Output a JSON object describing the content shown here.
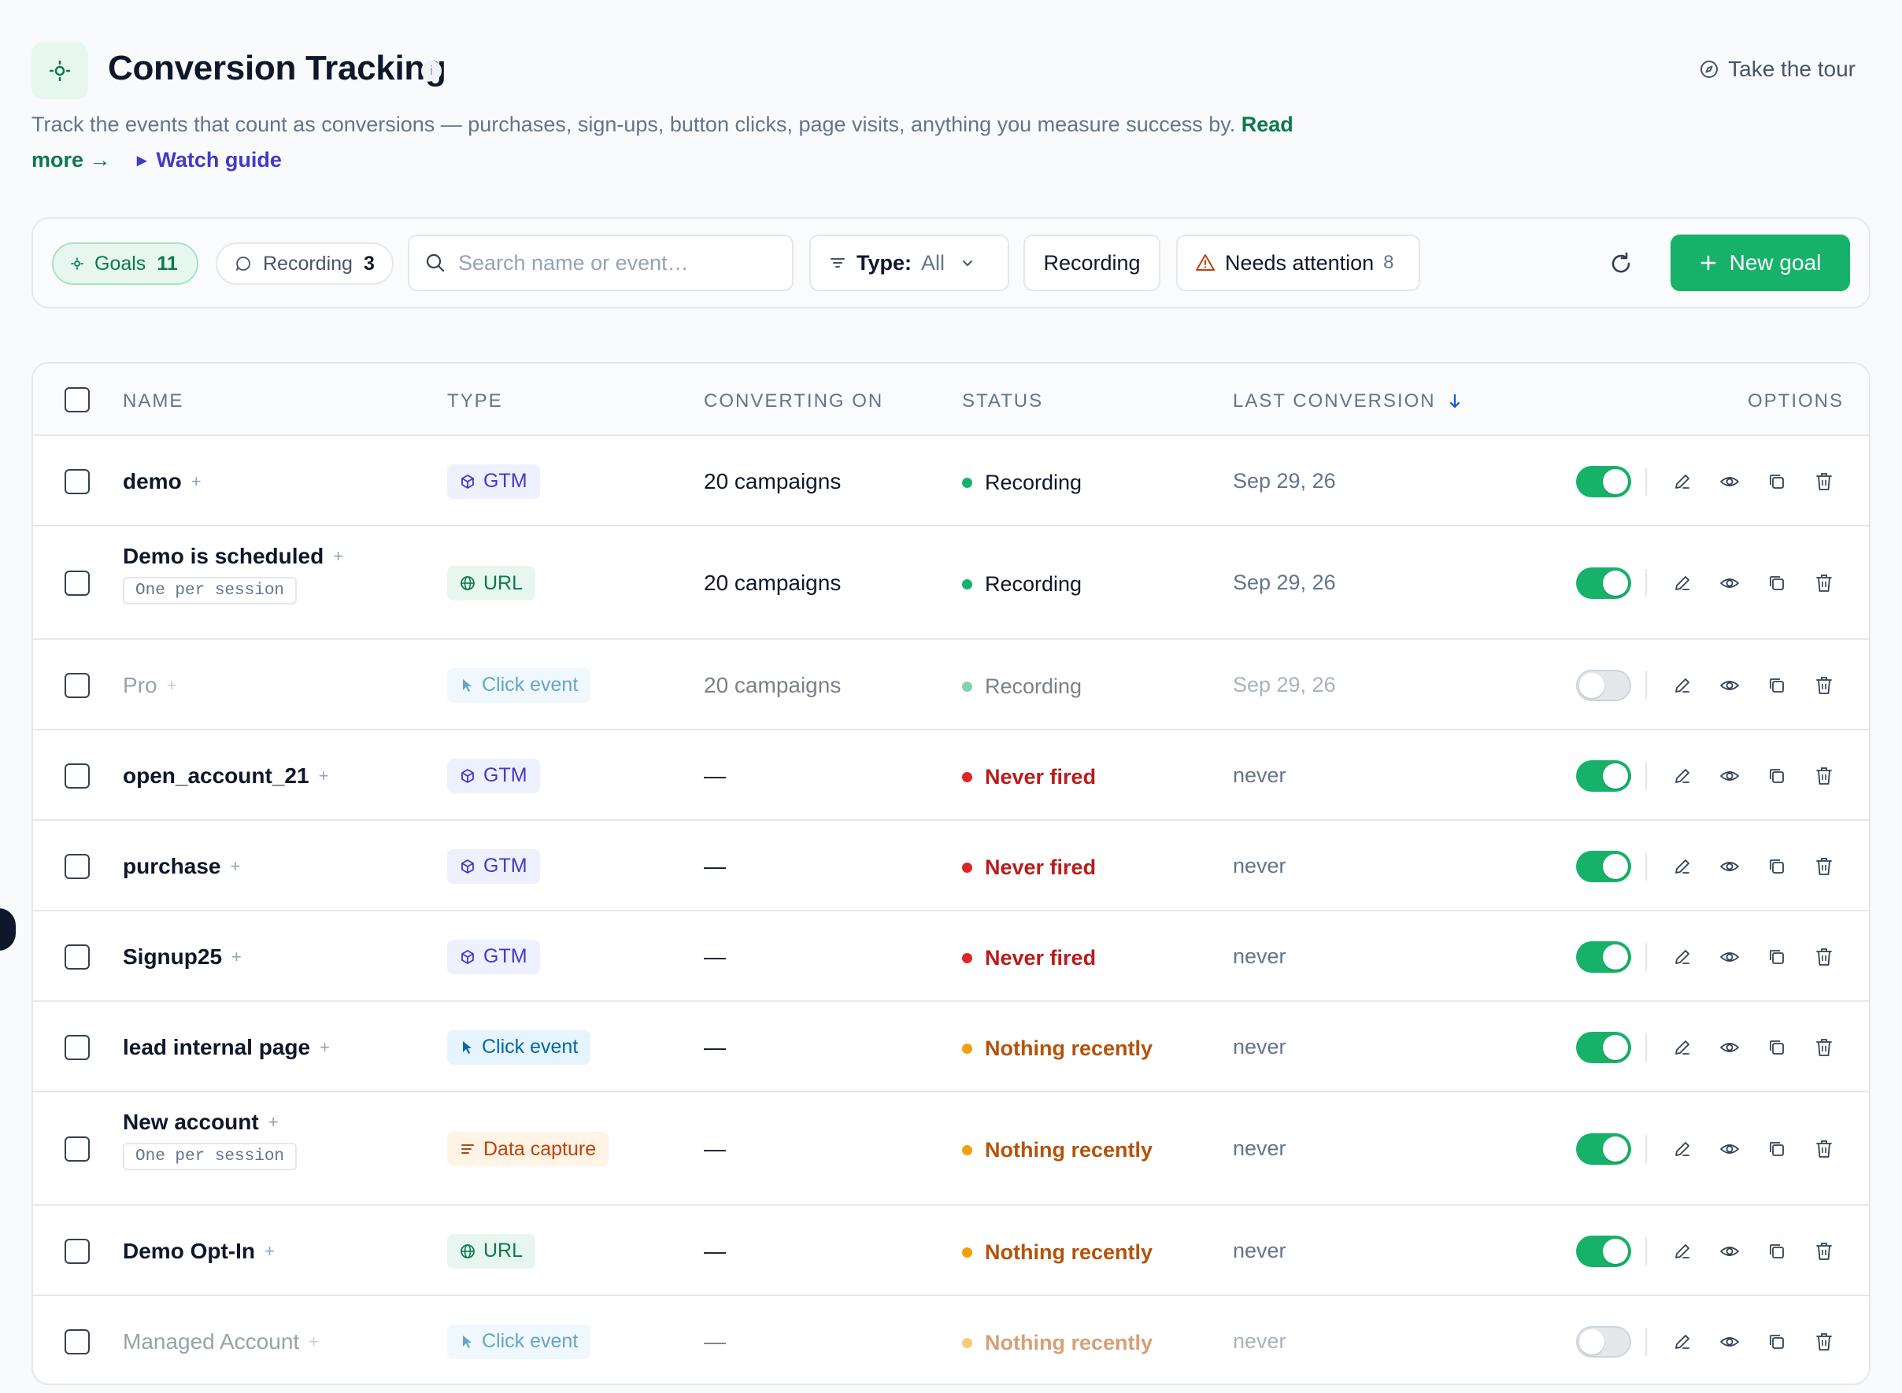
{
  "header": {
    "title": "Conversion Tracking",
    "info_label": "i",
    "tour_label": "Take the tour",
    "description": "Track the events that count as conversions — purchases, sign-ups, button clicks, page visits, anything you measure success by.",
    "read_more": "Read more →",
    "watch_guide": "Watch guide"
  },
  "toolbar": {
    "goals_label": "Goals",
    "goals_count": "11",
    "recording_label": "Recording",
    "recording_count": "3",
    "search_placeholder": "Search name or event…",
    "type_label": "Type:",
    "type_value": "All",
    "recording_button": "Recording",
    "attention_label": "Needs attention",
    "attention_count": "8",
    "new_goal_label": "New goal"
  },
  "table": {
    "columns": {
      "name": "NAME",
      "type": "TYPE",
      "converting_on": "CONVERTING ON",
      "status": "STATUS",
      "last_conversion": "LAST CONVERSION",
      "options": "OPTIONS"
    },
    "rows": [
      {
        "name": "demo",
        "session": "",
        "type": "GTM",
        "converting_on": "20 campaigns",
        "status": "Recording",
        "last": "Sep 29, 26",
        "enabled": true
      },
      {
        "name": "Demo is scheduled",
        "session": "One per session",
        "type": "URL",
        "converting_on": "20 campaigns",
        "status": "Recording",
        "last": "Sep 29, 26",
        "enabled": true
      },
      {
        "name": "Pro",
        "session": "",
        "type": "Click event",
        "converting_on": "20 campaigns",
        "status": "Recording",
        "last": "Sep 29, 26",
        "enabled": false
      },
      {
        "name": "open_account_21",
        "session": "",
        "type": "GTM",
        "converting_on": "—",
        "status": "Never fired",
        "last": "never",
        "enabled": true
      },
      {
        "name": "purchase",
        "session": "",
        "type": "GTM",
        "converting_on": "—",
        "status": "Never fired",
        "last": "never",
        "enabled": true
      },
      {
        "name": "Signup25",
        "session": "",
        "type": "GTM",
        "converting_on": "—",
        "status": "Never fired",
        "last": "never",
        "enabled": true
      },
      {
        "name": "lead internal page",
        "session": "",
        "type": "Click event",
        "converting_on": "—",
        "status": "Nothing recently",
        "last": "never",
        "enabled": true
      },
      {
        "name": "New account",
        "session": "One per session",
        "type": "Data capture",
        "converting_on": "—",
        "status": "Nothing recently",
        "last": "never",
        "enabled": true
      },
      {
        "name": "Demo Opt-In",
        "session": "",
        "type": "URL",
        "converting_on": "—",
        "status": "Nothing recently",
        "last": "never",
        "enabled": true
      },
      {
        "name": "Managed Account",
        "session": "",
        "type": "Click event",
        "converting_on": "—",
        "status": "Nothing recently",
        "last": "never",
        "enabled": false
      }
    ]
  },
  "colors": {
    "accent": "#17b26a",
    "gtm": "#4338ca",
    "url": "#0b7a4a",
    "click": "#0369a1",
    "data": "#c2410c",
    "never": "#dc2626",
    "nothing": "#f59e0b"
  }
}
